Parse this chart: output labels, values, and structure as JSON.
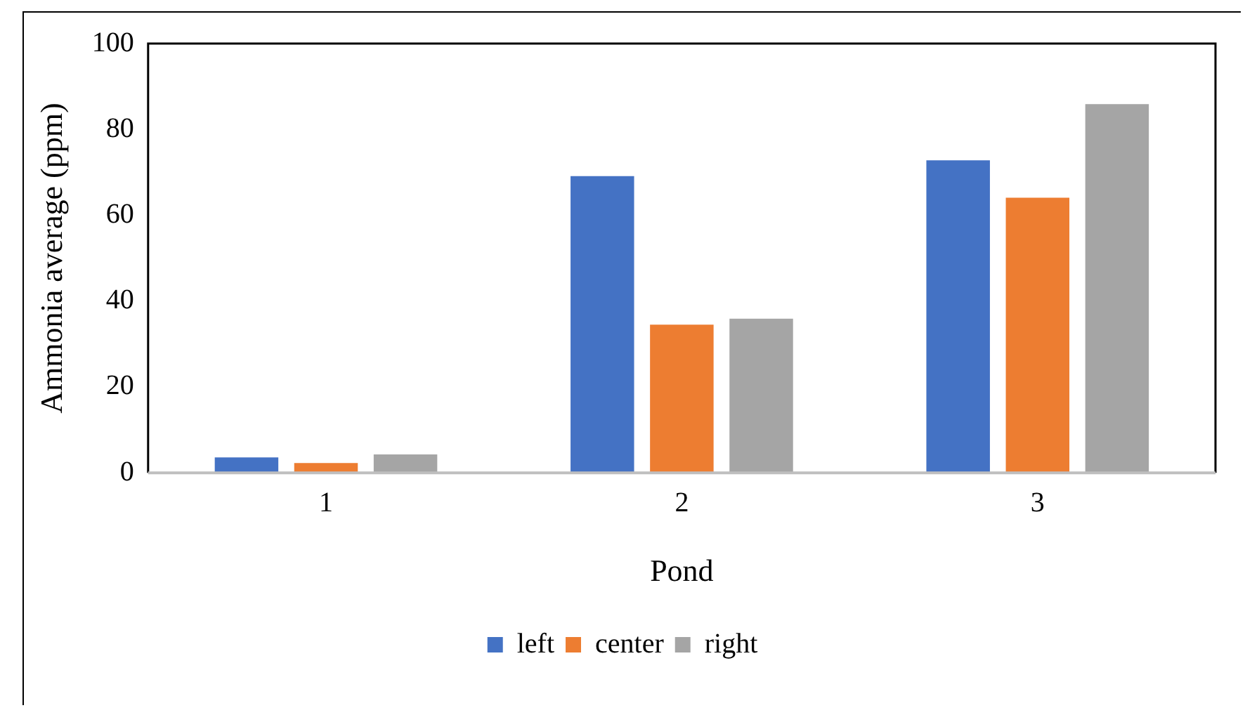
{
  "chart_data": {
    "type": "bar",
    "xlabel": "Pond",
    "ylabel": "Ammonia average (ppm)",
    "categories": [
      "1",
      "2",
      "3"
    ],
    "series": [
      {
        "name": "left",
        "color": "#4472c4",
        "values": [
          3.6,
          69.1,
          72.8
        ]
      },
      {
        "name": "center",
        "color": "#ed7d31",
        "values": [
          2.3,
          34.5,
          64.1
        ]
      },
      {
        "name": "right",
        "color": "#a5a5a5",
        "values": [
          4.3,
          35.9,
          85.9
        ]
      }
    ],
    "ylim": [
      0,
      100
    ],
    "yticks": [
      0,
      20,
      40,
      60,
      80,
      100
    ],
    "grid": false,
    "legend": "bottom"
  }
}
